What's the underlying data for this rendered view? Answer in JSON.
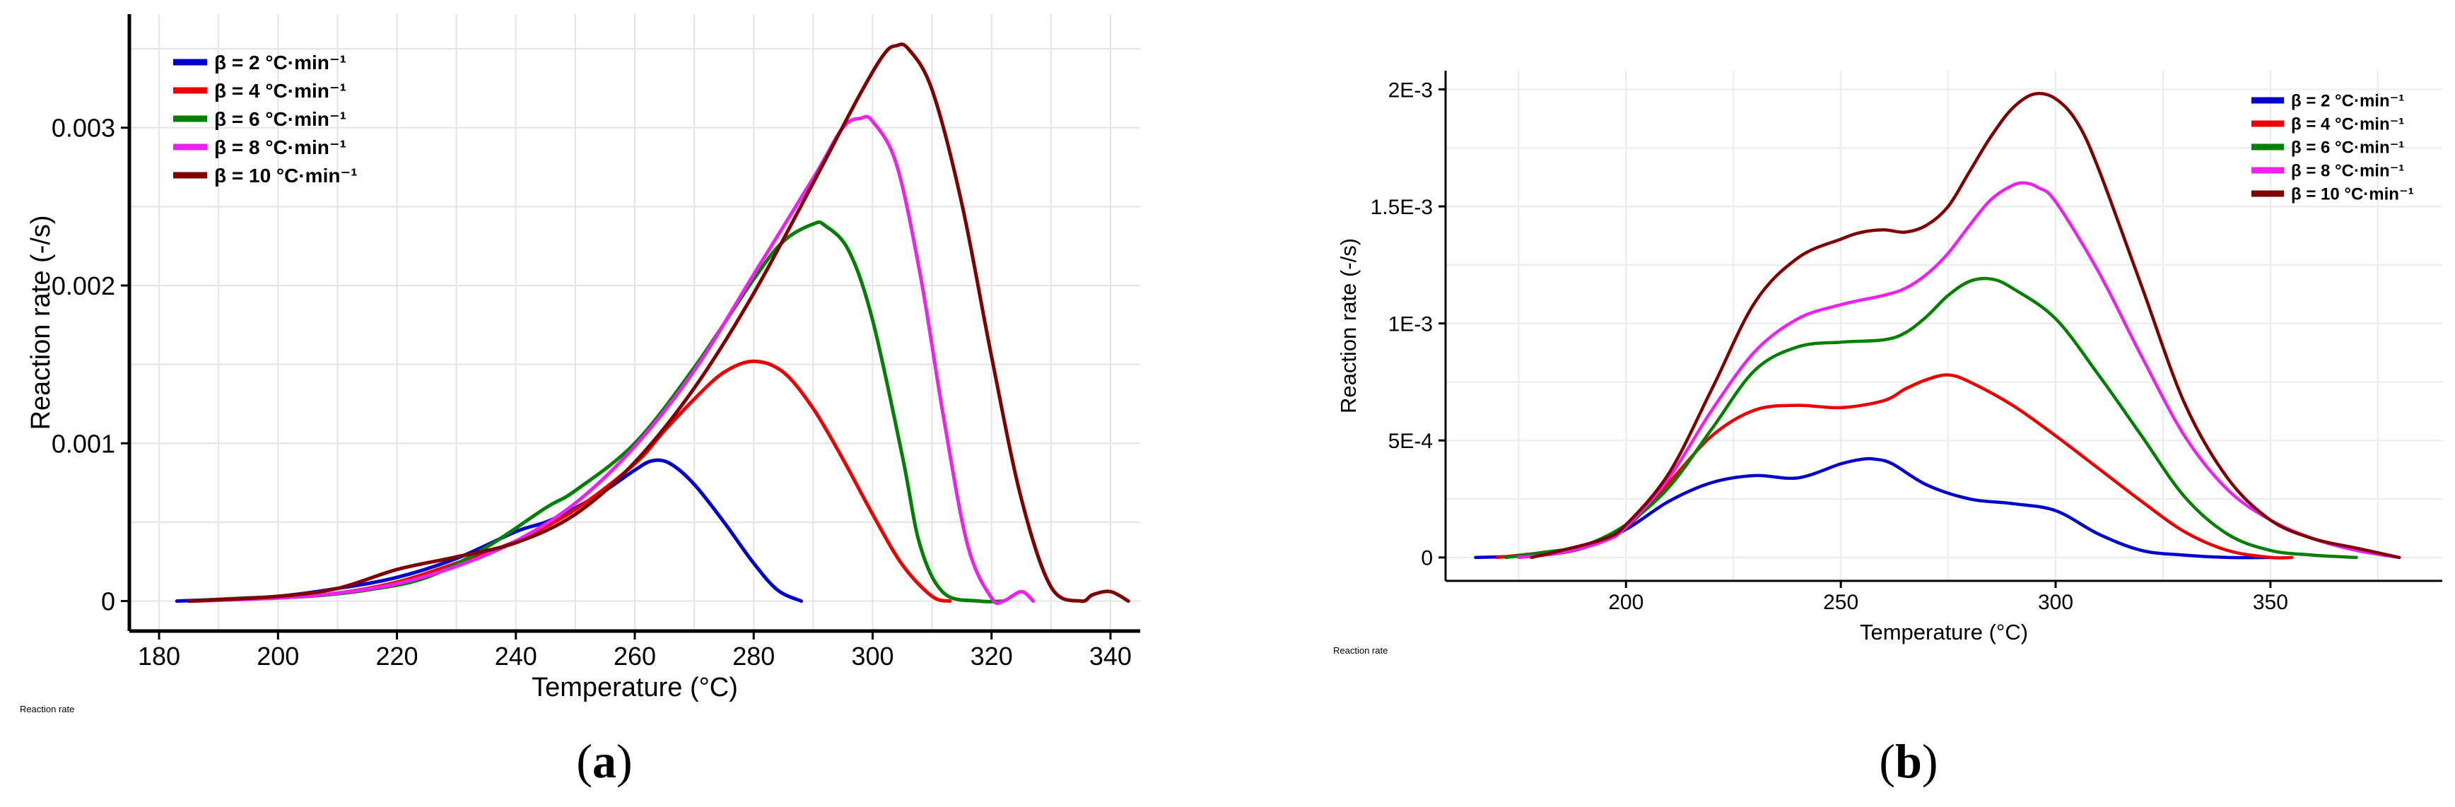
{
  "chart_data": [
    {
      "type": "line",
      "panel_label": "(a)",
      "xlabel": "Temperature (°C)",
      "ylabel": "Reaction rate (-/s)",
      "footnote": "Reaction rate",
      "xlim": [
        175,
        345
      ],
      "ylim": [
        -0.00019,
        0.00372
      ],
      "xticks": [
        180,
        200,
        220,
        240,
        260,
        280,
        300,
        320,
        340
      ],
      "xtick_labels": [
        "180",
        "200",
        "220",
        "240",
        "260",
        "280",
        "300",
        "320",
        "340"
      ],
      "yticks": [
        0,
        0.001,
        0.002,
        0.003
      ],
      "ytick_labels": [
        "0",
        "0.001",
        "0.002",
        "0.003"
      ],
      "grid": true,
      "legend_position": "top-left",
      "series": [
        {
          "name": "β = 2 °C·min⁻¹",
          "color": "#0000cc",
          "x": [
            183,
            190,
            200,
            210,
            220,
            230,
            240,
            245,
            250,
            255,
            260,
            263,
            266,
            270,
            275,
            280,
            284,
            288
          ],
          "y": [
            0,
            1e-05,
            3e-05,
            8e-05,
            0.00015,
            0.00027,
            0.00044,
            0.0005,
            0.00059,
            0.0007,
            0.00083,
            0.00089,
            0.00087,
            0.00074,
            0.0005,
            0.00024,
            7e-05,
            0
          ]
        },
        {
          "name": "β = 4 °C·min⁻¹",
          "color": "#ee0000",
          "x": [
            185,
            200,
            210,
            220,
            230,
            240,
            250,
            260,
            265,
            270,
            275,
            280,
            285,
            290,
            295,
            300,
            305,
            310,
            313
          ],
          "y": [
            0,
            2e-05,
            5e-05,
            0.00012,
            0.00024,
            0.00038,
            0.00058,
            0.00087,
            0.00108,
            0.00128,
            0.00145,
            0.00152,
            0.00145,
            0.00122,
            0.0009,
            0.00055,
            0.00023,
            3e-05,
            0
          ]
        },
        {
          "name": "β = 6 °C·min⁻¹",
          "color": "#008000",
          "x": [
            185,
            195,
            205,
            215,
            225,
            235,
            245,
            250,
            260,
            270,
            280,
            285,
            290,
            292,
            296,
            300,
            305,
            308,
            312,
            318,
            322
          ],
          "y": [
            0,
            2e-05,
            3e-05,
            7e-05,
            0.00015,
            0.00034,
            0.00059,
            0.0007,
            0.001,
            0.00148,
            0.00204,
            0.00228,
            0.00239,
            0.00238,
            0.00222,
            0.00178,
            0.00092,
            0.00035,
            5e-05,
            0,
            0
          ]
        },
        {
          "name": "β = 8 °C·min⁻¹",
          "color": "#ee22ee",
          "x": [
            186,
            200,
            210,
            220,
            230,
            240,
            250,
            260,
            270,
            280,
            290,
            295,
            298,
            300,
            304,
            308,
            312,
            316,
            320,
            322,
            325,
            327
          ],
          "y": [
            0,
            2e-05,
            5e-05,
            0.00011,
            0.00022,
            0.00038,
            0.00062,
            0.00098,
            0.00146,
            0.00207,
            0.00268,
            0.003,
            0.00306,
            0.00304,
            0.00277,
            0.00207,
            0.00115,
            0.00035,
            2e-05,
            0,
            6e-05,
            0
          ]
        },
        {
          "name": "β = 10 °C·min⁻¹",
          "color": "#800000",
          "x": [
            185,
            200,
            210,
            220,
            230,
            240,
            250,
            260,
            270,
            280,
            290,
            298,
            302,
            304,
            306,
            310,
            315,
            320,
            325,
            330,
            335,
            337,
            340,
            343
          ],
          "y": [
            0,
            3e-05,
            8e-05,
            0.0002,
            0.00028,
            0.00037,
            0.00055,
            0.00088,
            0.00135,
            0.00195,
            0.00265,
            0.00322,
            0.00347,
            0.00352,
            0.0035,
            0.00324,
            0.00252,
            0.00155,
            0.00065,
            9e-05,
            0,
            4e-05,
            6e-05,
            0
          ]
        }
      ]
    },
    {
      "type": "line",
      "panel_label": "(b)",
      "xlabel": "Temperature (°C)",
      "ylabel": "Reaction rate (-/s)",
      "footnote": "Reaction rate",
      "xlim": [
        158,
        390
      ],
      "ylim": [
        -0.0001,
        0.00208
      ],
      "xticks": [
        200,
        250,
        300,
        350
      ],
      "xtick_labels": [
        "200",
        "250",
        "300",
        "350"
      ],
      "yticks": [
        0,
        0.0005,
        0.001,
        0.0015,
        0.002
      ],
      "ytick_labels": [
        "0",
        "5E-4",
        "1E-3",
        "1.5E-3",
        "2E-3"
      ],
      "grid": true,
      "legend_position": "top-right",
      "series": [
        {
          "name": "β = 2 °C·min⁻¹",
          "color": "#0000cc",
          "x": [
            165,
            180,
            190,
            200,
            210,
            220,
            230,
            240,
            250,
            255,
            258,
            262,
            270,
            280,
            290,
            300,
            310,
            320,
            330,
            340,
            350
          ],
          "y": [
            0,
            1e-05,
            4e-05,
            0.00012,
            0.00024,
            0.00032,
            0.00035,
            0.00034,
            0.0004,
            0.00042,
            0.00042,
            0.0004,
            0.00031,
            0.00025,
            0.00023,
            0.0002,
            0.0001,
            3e-05,
            1e-05,
            0,
            0
          ]
        },
        {
          "name": "β = 4 °C·min⁻¹",
          "color": "#ee0000",
          "x": [
            170,
            180,
            190,
            200,
            210,
            220,
            230,
            240,
            250,
            260,
            265,
            270,
            275,
            280,
            290,
            300,
            310,
            320,
            330,
            340,
            350,
            355
          ],
          "y": [
            0,
            2e-05,
            5e-05,
            0.00013,
            0.00032,
            0.00052,
            0.00063,
            0.00065,
            0.00064,
            0.00067,
            0.00072,
            0.00076,
            0.00078,
            0.00075,
            0.00065,
            0.00052,
            0.00038,
            0.00024,
            0.00011,
            3e-05,
            0,
            0
          ]
        },
        {
          "name": "β = 6 °C·min⁻¹",
          "color": "#008000",
          "x": [
            172,
            180,
            190,
            200,
            210,
            220,
            230,
            240,
            250,
            260,
            265,
            270,
            275,
            280,
            285,
            290,
            300,
            310,
            320,
            330,
            340,
            350,
            360,
            370
          ],
          "y": [
            0,
            2e-05,
            5e-05,
            0.00014,
            0.0003,
            0.00055,
            0.0008,
            0.0009,
            0.00092,
            0.00093,
            0.00096,
            0.00103,
            0.00112,
            0.00118,
            0.00119,
            0.00115,
            0.00102,
            0.00078,
            0.00052,
            0.00026,
            0.0001,
            3e-05,
            1e-05,
            0
          ]
        },
        {
          "name": "β = 8 °C·min⁻¹",
          "color": "#ee22ee",
          "x": [
            175,
            185,
            195,
            200,
            210,
            220,
            230,
            240,
            250,
            260,
            265,
            270,
            275,
            280,
            285,
            290,
            293,
            296,
            300,
            310,
            320,
            330,
            340,
            350,
            360,
            370,
            380
          ],
          "y": [
            0,
            2e-05,
            7e-05,
            0.00013,
            0.00034,
            0.00063,
            0.00088,
            0.00102,
            0.00108,
            0.00112,
            0.00115,
            0.00121,
            0.0013,
            0.00142,
            0.00153,
            0.00159,
            0.0016,
            0.00158,
            0.00152,
            0.00122,
            0.00086,
            0.00052,
            0.00029,
            0.00016,
            8e-05,
            3e-05,
            0
          ]
        },
        {
          "name": "β = 10 °C·min⁻¹",
          "color": "#800000",
          "x": [
            178,
            185,
            195,
            200,
            210,
            220,
            230,
            240,
            250,
            255,
            260,
            265,
            270,
            275,
            280,
            285,
            290,
            295,
            300,
            305,
            310,
            320,
            330,
            340,
            350,
            360,
            370,
            380
          ],
          "y": [
            0,
            3e-05,
            8e-05,
            0.00014,
            0.00036,
            0.00072,
            0.00109,
            0.00128,
            0.00136,
            0.00139,
            0.0014,
            0.00139,
            0.00142,
            0.0015,
            0.00165,
            0.0018,
            0.00192,
            0.00198,
            0.00196,
            0.00186,
            0.00166,
            0.00116,
            0.00066,
            0.00034,
            0.00016,
            8e-05,
            4e-05,
            0
          ]
        }
      ]
    }
  ]
}
